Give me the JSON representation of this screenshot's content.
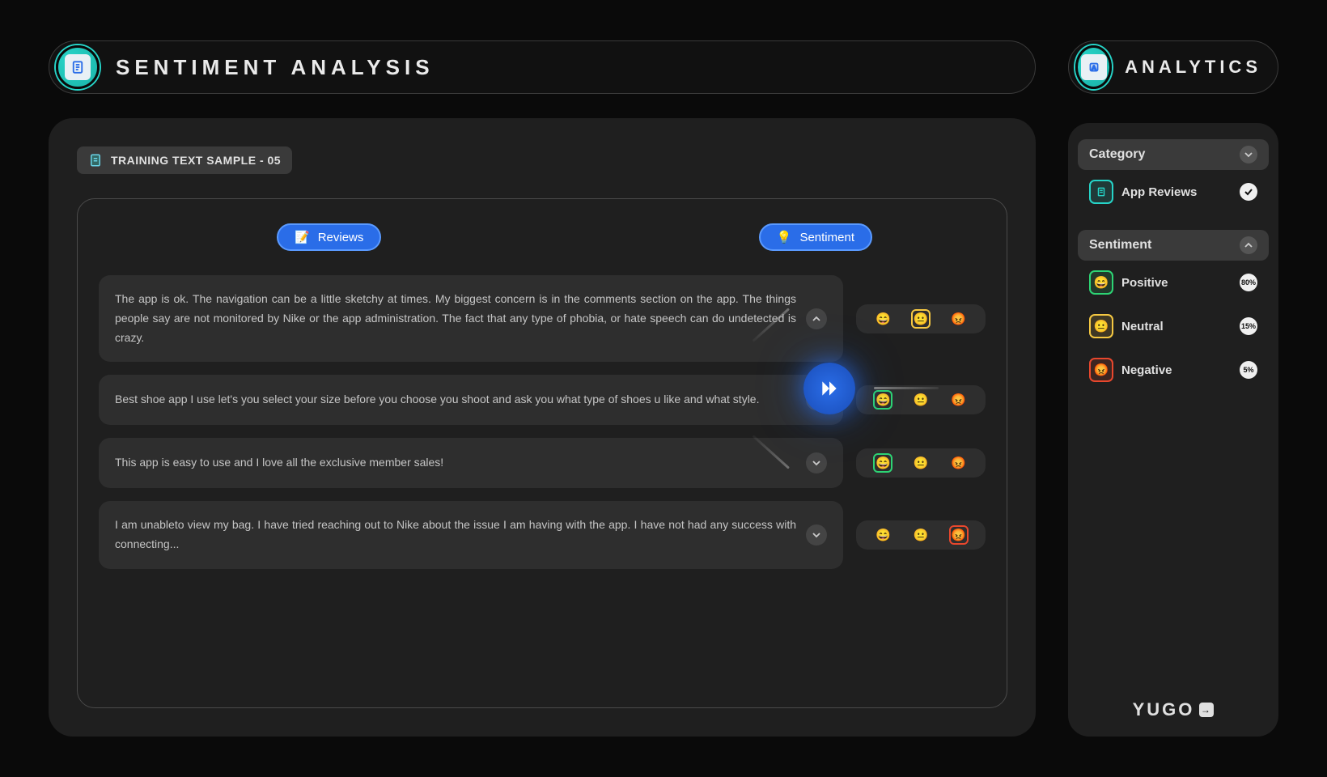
{
  "colors": {
    "bg": "#0a0a0a",
    "panel": "#1f1f1f",
    "card": "#2e2e2e",
    "chip": "#3a3a3a",
    "border": "#4a4a4a",
    "accent_blue": "#2a6de8",
    "accent_blue_border": "#5a9aff",
    "teal": "#26d4c8",
    "green": "#2dd474",
    "yellow": "#f5c842",
    "red": "#e8472d",
    "text": "#e0e0e0",
    "text_muted": "#c5c5c5"
  },
  "main": {
    "title": "SENTIMENT ANALYSIS",
    "sample_label": "TRAINING TEXT SAMPLE - 05",
    "tabs": {
      "reviews": "Reviews",
      "sentiment": "Sentiment"
    },
    "emojis": {
      "positive": "😄",
      "neutral": "😐",
      "negative": "😡"
    },
    "reviews": [
      {
        "text": "The app is ok. The navigation can be a little sketchy at times. My biggest concern is in the comments section on the app. The things people say are not monitored by Nike or the app administration. The fact that any type of phobia, or hate speech can do undetected is crazy.",
        "expanded": true,
        "selected": "neutral"
      },
      {
        "text": "Best shoe app I use let's you select your size before you choose you shoot and ask you what type of shoes u like and what style.",
        "expanded": false,
        "selected": "positive"
      },
      {
        "text": "This app is easy to use and I love all the exclusive member sales!",
        "expanded": false,
        "selected": "positive"
      },
      {
        "text": "I am unableto view my bag. I have tried reaching out to Nike about the issue I am having with the app. I have not had any success with connecting...",
        "expanded": false,
        "selected": "negative"
      }
    ]
  },
  "analytics": {
    "title": "ANALYTICS",
    "category": {
      "header": "Category",
      "item": "App Reviews",
      "checked": true
    },
    "sentiment": {
      "header": "Sentiment",
      "items": [
        {
          "label": "Positive",
          "pct": "80%",
          "badge": "green",
          "emoji": "😄"
        },
        {
          "label": "Neutral",
          "pct": "15%",
          "badge": "yellow",
          "emoji": "😐"
        },
        {
          "label": "Negative",
          "pct": "5%",
          "badge": "red",
          "emoji": "😡"
        }
      ]
    },
    "logo": "YUGO"
  }
}
